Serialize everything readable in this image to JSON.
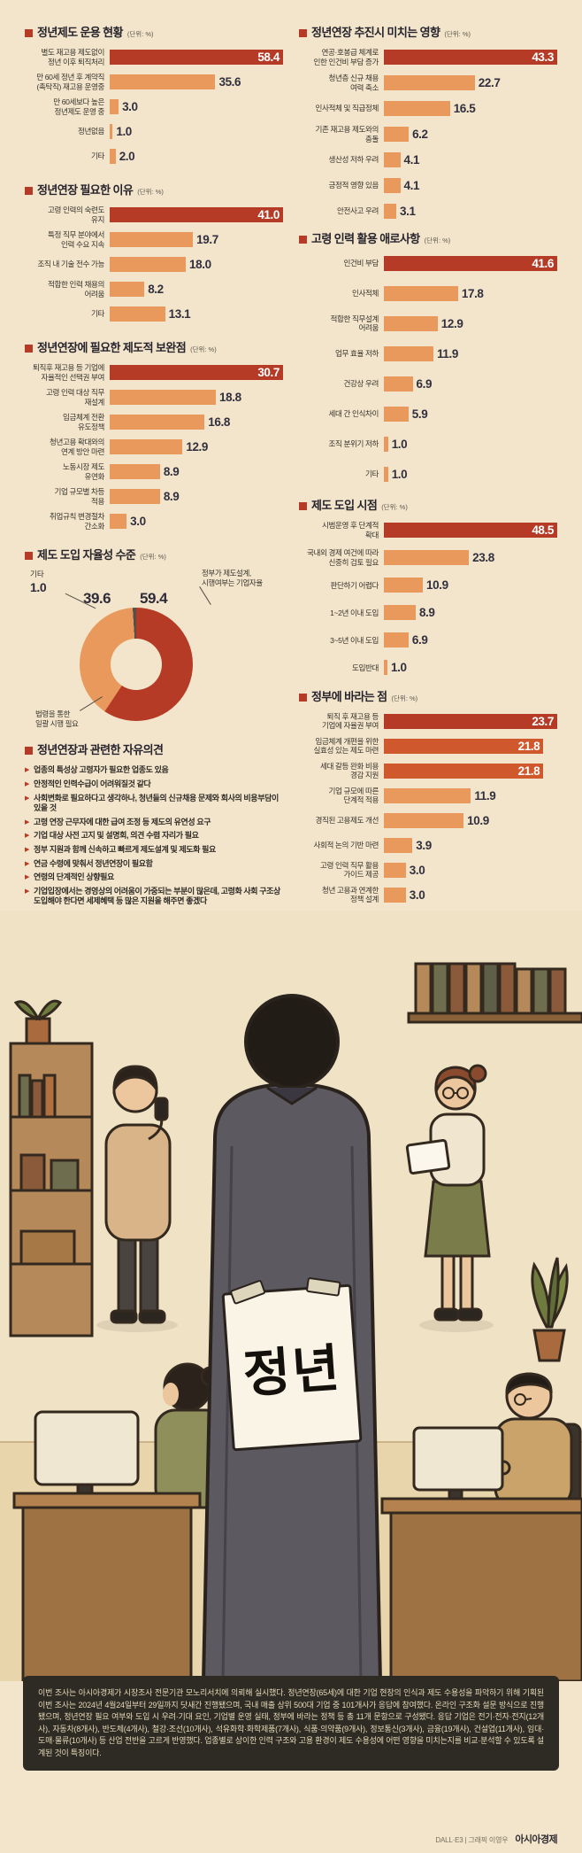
{
  "theme": {
    "bg": "#f2e5cb",
    "ink": "#2e2b33",
    "bar_red": "#b63b26",
    "bar_orange": "#e9995b",
    "bar_mid_red": "#d0582d",
    "panel_dark": "#2e2a24",
    "panel_text": "#e6dab8"
  },
  "chart_data": [
    {
      "id": "operation",
      "type": "bar",
      "title": "정년제도 운용 현황",
      "unit": "(단위: %)",
      "categories": [
        "별도 재고용 제도없이\n정년 이후 퇴직처리",
        "만 60세 정년 후 계약직\n(촉탁직) 재고용 운영중",
        "만 60세보다 높은\n정년제도 운영 중",
        "정년없음",
        "기타"
      ],
      "values": [
        58.4,
        35.6,
        3.0,
        1.0,
        2.0
      ]
    },
    {
      "id": "impact",
      "type": "bar",
      "title": "정년연장 추진시 미치는 영향",
      "unit": "(단위: %)",
      "categories": [
        "연공·호봉급 체계로\n인한 인건비 부담 증가",
        "청년층 신규 채용\n여력 축소",
        "인사적체 및 직급정체",
        "기존 재고용 제도와의\n충돌",
        "생산성 저하 우려",
        "긍정적 영향 있음",
        "안전사고 우려"
      ],
      "values": [
        43.3,
        22.7,
        16.5,
        6.2,
        4.1,
        4.1,
        3.1
      ]
    },
    {
      "id": "reason",
      "type": "bar",
      "title": "정년연장 필요한 이유",
      "unit": "(단위: %)",
      "categories": [
        "고령 인력의 숙련도\n유지",
        "특정 직무 분야에서\n인력 수요 지속",
        "조직 내 기술 전수 가능",
        "적합한 인력 채용의\n어려움",
        "기타"
      ],
      "values": [
        41.0,
        19.7,
        18.0,
        8.2,
        13.1
      ]
    },
    {
      "id": "difficulty",
      "type": "bar",
      "title": "고령 인력 활용 애로사항",
      "unit": "(단위: %)",
      "categories": [
        "인건비 부담",
        "인사적체",
        "적합한 직무설계\n어려움",
        "업무 효율 저하",
        "건강상 우려",
        "세대 간 인식차이",
        "조직 분위기 저하",
        "기타"
      ],
      "values": [
        41.6,
        17.8,
        12.9,
        11.9,
        6.9,
        5.9,
        1.0,
        1.0
      ]
    },
    {
      "id": "supplement",
      "type": "bar",
      "title": "정년연장에 필요한 제도적 보완점",
      "unit": "(단위: %)",
      "categories": [
        "퇴직후 재고용 등 기업에\n자율적인 선택권 부여",
        "고령 인력 대상 직무\n재설계",
        "임금체계 전환\n유도정책",
        "청년고용 확대와의\n연계 방안 마련",
        "노동시장 제도\n유연화",
        "기업 규모별 차등\n적용",
        "취업규칙 변경절차\n간소화"
      ],
      "values": [
        30.7,
        18.8,
        16.8,
        12.9,
        8.9,
        8.9,
        3.0
      ]
    },
    {
      "id": "timing",
      "type": "bar",
      "title": "제도 도입 시점",
      "unit": "(단위: %)",
      "categories": [
        "시범운영 후 단계적\n확대",
        "국내외 경제 여건에 따라\n신중히 검토 필요",
        "판단하기 어렵다",
        "1~2년 이내 도입",
        "3~5년 이내 도입",
        "도입반대"
      ],
      "values": [
        48.5,
        23.8,
        10.9,
        8.9,
        6.9,
        1.0
      ]
    },
    {
      "id": "gov",
      "type": "bar",
      "title": "정부에 바라는 점",
      "unit": "(단위: %)",
      "categories": [
        "퇴직 후 재고용 등\n기업에 자율권 부여",
        "임금체계 개편을 위한\n실효성 있는 제도 마련",
        "세대 갈등 완화 비용\n경감 지원",
        "기업 규모에 따른\n단계적 적용",
        "경직된 고용제도 개선",
        "사회적 논의 기반 마련",
        "고령 인력 직무 활용\n가이드 제공",
        "청년 고용과 연계한\n정책 설계"
      ],
      "values": [
        23.7,
        21.8,
        21.8,
        11.9,
        10.9,
        3.9,
        3.0,
        3.0
      ],
      "bar_colors": [
        "#b63b26",
        "#d0582d",
        "#d0582d",
        "#e9995b",
        "#e9995b",
        "#e9995b",
        "#e9995b",
        "#e9995b"
      ]
    },
    {
      "id": "autonomy",
      "type": "pie",
      "title": "제도 도입 자율성 수준",
      "unit": "(단위: %)",
      "segments": [
        {
          "label": "정부가 제도설계, 시행여부는 기업자율",
          "value": 59.4,
          "color": "#b63b26"
        },
        {
          "label": "법령을 통한 일괄 시행 필요",
          "value": 39.6,
          "color": "#e9995b"
        },
        {
          "label": "기타",
          "value": 1.0,
          "color": "#55504a"
        }
      ]
    }
  ],
  "pie_display": {
    "etc_label": "기타",
    "etc_value": "1.0",
    "left_value": "39.6",
    "right_value": "59.4",
    "right_label": "정부가 제도설계,\n시행여부는 기업자율",
    "bottom_label": "법령을 통한\n일괄 시행 필요"
  },
  "opinions": {
    "title": "정년연장과 관련한 자유의견",
    "items": [
      "업종의 특성상 고령자가 필요한 업종도 있음",
      "안정적인 인력수급이 어려워질것 같다",
      "사회변화로 필요하다고 생각하나, 청년들의 신규채용 문제와 회사의 비용부담이 있을 것",
      "고령 연장 근무자에 대한 급여 조정 등 제도의 유연성 요구",
      "기업 대상 사전 고지 및 설명회, 의견 수렴 자리가 필요",
      "정부 지원과 함께 신속하고 빠르게 제도설계 및 제도화 필요",
      "연금 수령에 맞춰서 정년연장이 필요함",
      "연령의 단계적인 상향필요",
      "기업입장에서는 경영상의 어려움이 가중되는 부분이 많은데, 고령화 사회 구조상 도입해야 한다면 세제혜택 등 많은 지원을 해주면 좋겠다"
    ]
  },
  "illustration": {
    "sign_text": "정년"
  },
  "survey_note": "이번 조사는 아시아경제가 시장조사 전문기관 모노리서치에 의뢰해 실시했다. 정년연장(65세)에 대한 기업 현장의 인식과 제도 수용성을 파악하기 위해 기획된 이번 조사는 2024년 4월24일부터 29일까지 닷새간 진행됐으며, 국내 매출 상위 500대 기업 중 101개사가 응답에 참여했다. 온라인 구조화 설문 방식으로 진행됐으며, 정년연장 필요 여부와 도입 시 우려·기대 요인, 기업별 운영 실태, 정부에 바라는 정책 등 총 11개 문항으로 구성됐다. 응답 기업은 전기·전자·전지(12개사), 자동차(8개사), 반도체(4개사), 철강·조선(10개사), 석유화학·화학제품(7개사), 식품·의약품(9개사), 정보통신(3개사), 금융(19개사), 건설업(11개사), 임대·도매·물류(10개사) 등 산업 전반을 고르게 반영했다. 업종별로 상이한 인력 구조와 고용 환경이 제도 수용성에 어떤 영향을 미치는지를 비교·분석할 수 있도록 설계된 것이 특징이다.",
  "credit": {
    "who": "DALL·E3 | 그래픽 이영우",
    "brand": "아시아경제"
  }
}
